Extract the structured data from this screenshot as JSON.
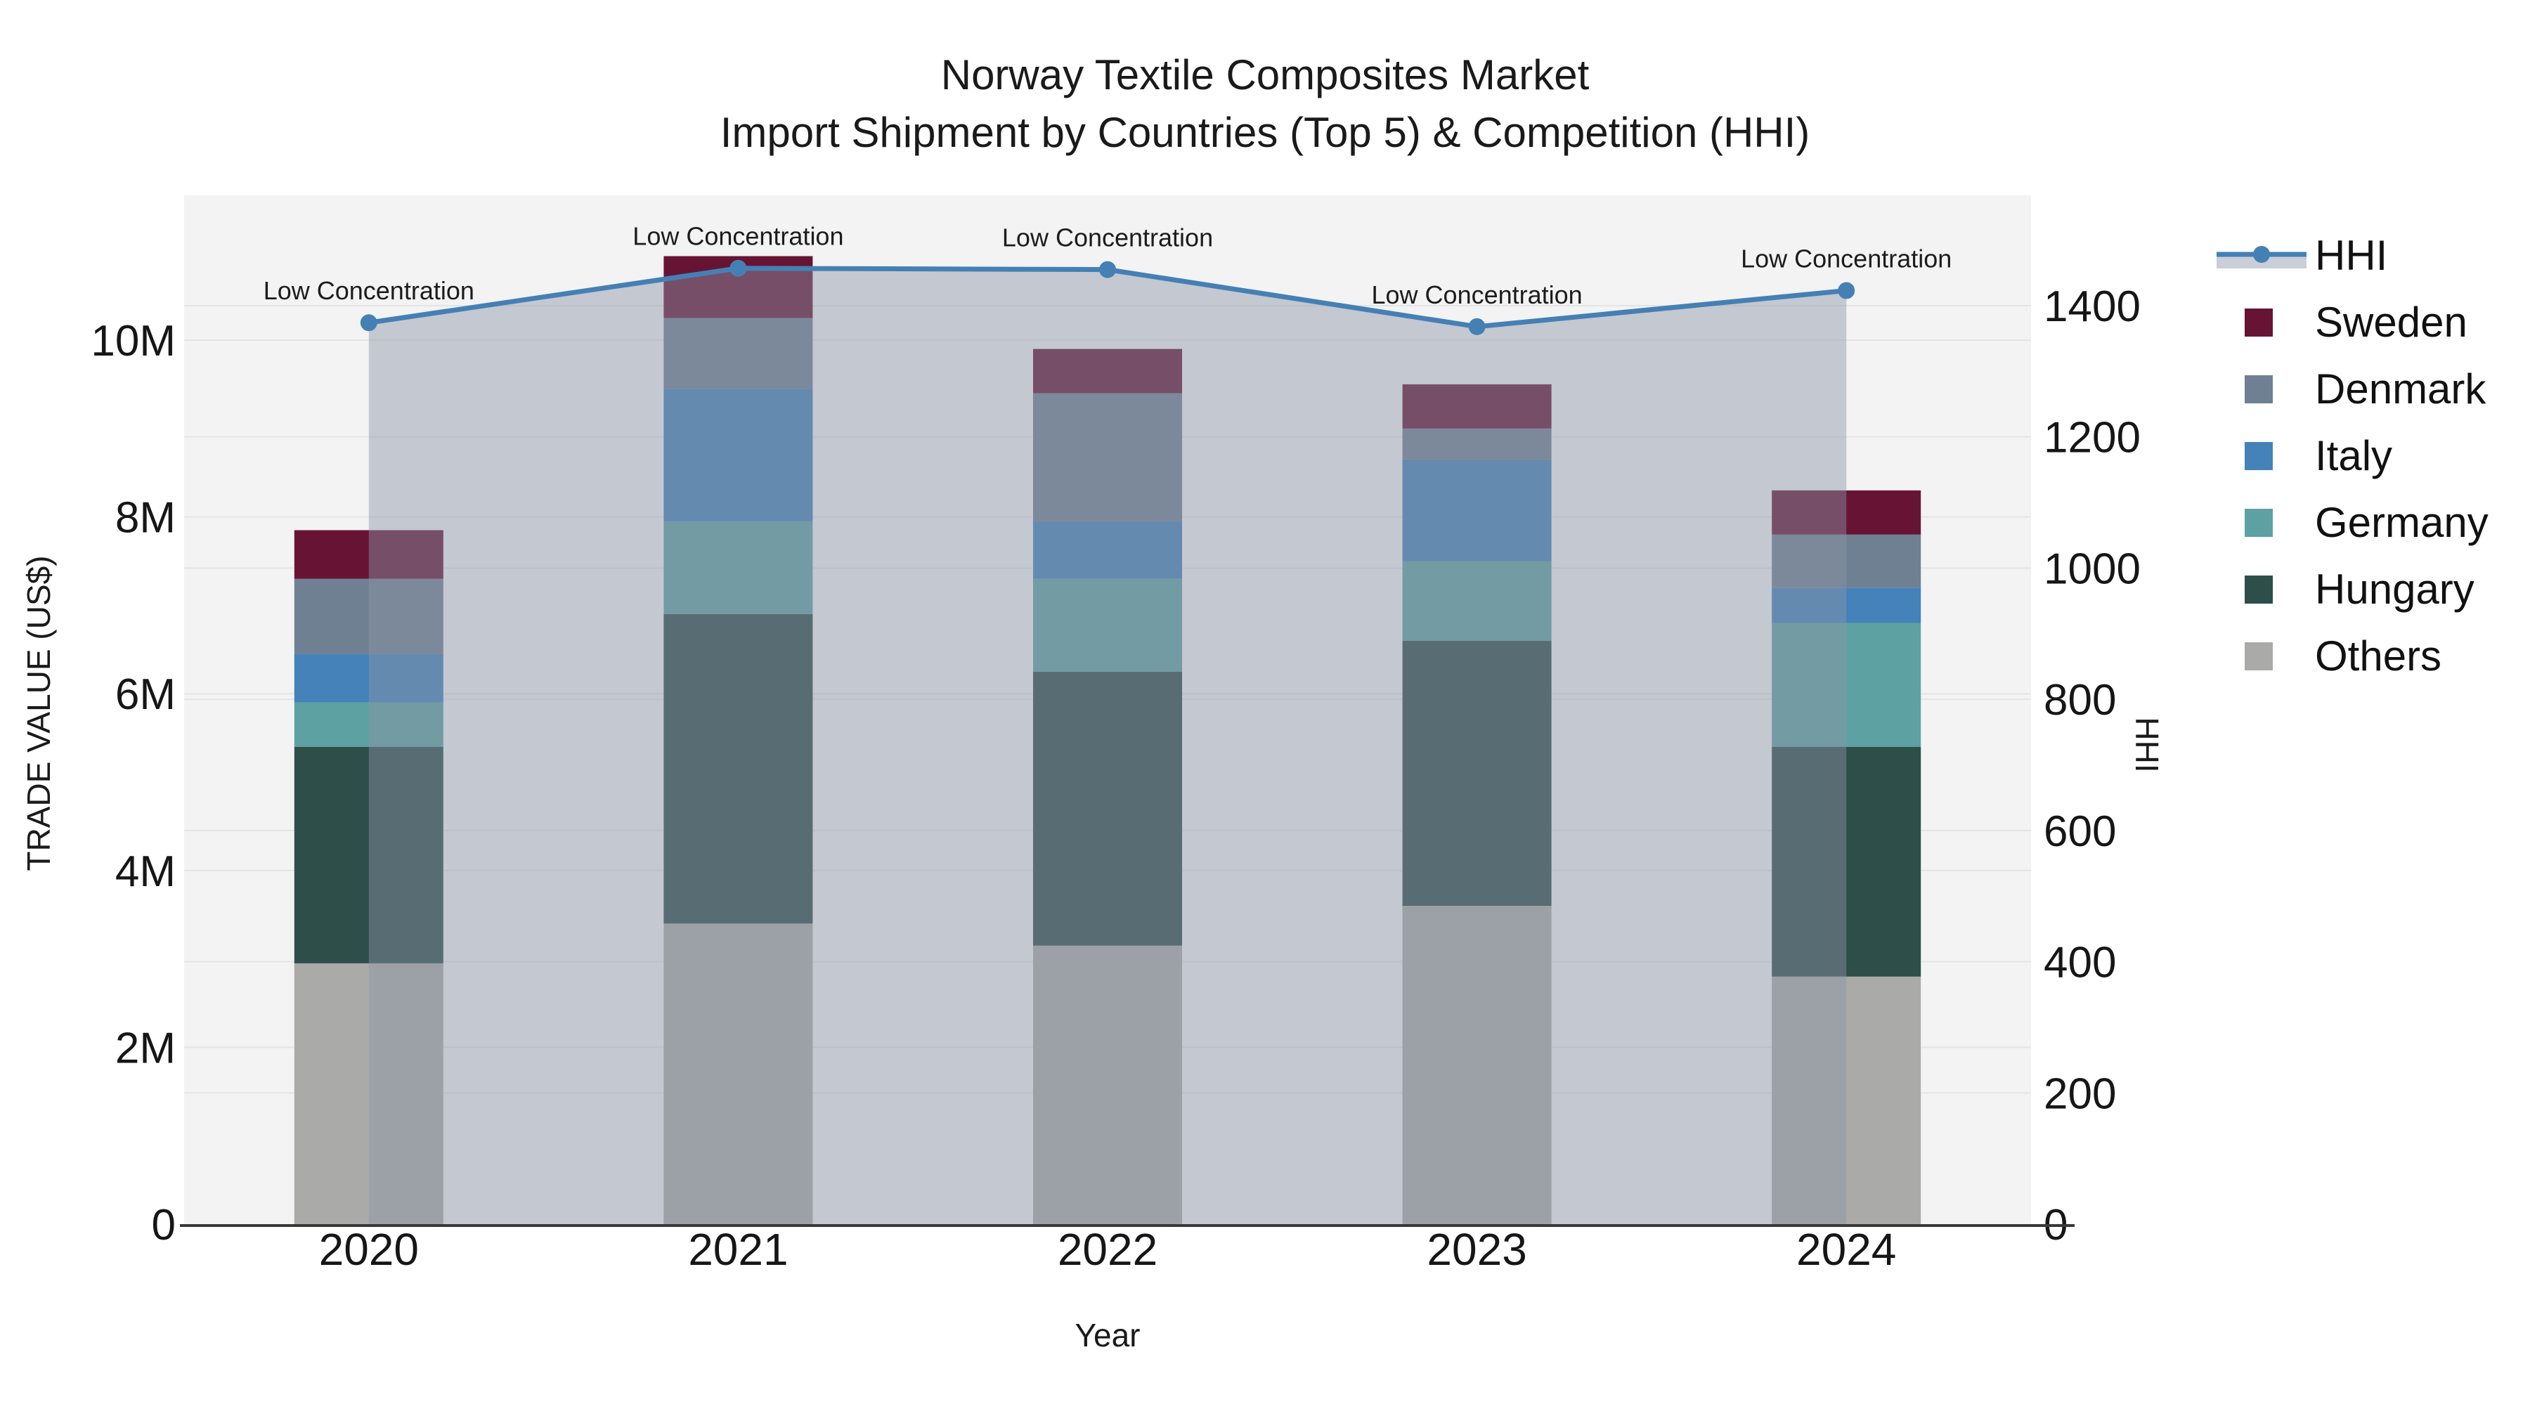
{
  "title": {
    "line1": "Norway Textile Composites Market",
    "line2": "Import Shipment by Countries (Top 5) & Competition (HHI)"
  },
  "axes": {
    "left_title": "TRADE VALUE (US$)",
    "right_title": "HHI",
    "x_title": "Year"
  },
  "colors": {
    "hhi_line": "#4580b4",
    "hhi_area_fill": "rgba(139,148,167,0.45)",
    "hhi_legend_band": "#c9ced8",
    "plot_background": "#f2f3f2",
    "gridline": "#e3e4e4",
    "axis_spine": "#383838",
    "text": "#161616"
  },
  "legend": {
    "items": [
      {
        "label": "HHI",
        "type": "line",
        "color": "#4580b4"
      },
      {
        "label": "Sweden",
        "type": "box",
        "color": "#671434"
      },
      {
        "label": "Denmark",
        "type": "box",
        "color": "#6f8093"
      },
      {
        "label": "Italy",
        "type": "box",
        "color": "#4482b9"
      },
      {
        "label": "Germany",
        "type": "box",
        "color": "#5da1a2"
      },
      {
        "label": "Hungary",
        "type": "box",
        "color": "#2e4e49"
      },
      {
        "label": "Others",
        "type": "box",
        "color": "#aaaaa8"
      }
    ]
  },
  "chart_data": {
    "type": "bar",
    "subtype": "stacked bars (left axis, M US$) with HHI line + shaded area overlay (right axis)",
    "title": "Norway Textile Composites Market — Import Shipment by Countries (Top 5) & Competition (HHI)",
    "x": [
      "2020",
      "2021",
      "2022",
      "2023",
      "2024"
    ],
    "bar_unit": "M US$",
    "series": [
      {
        "name": "Others",
        "color": "#aaaaa8",
        "values": [
          2.95,
          3.4,
          3.15,
          3.6,
          2.8
        ]
      },
      {
        "name": "Hungary",
        "color": "#2e4e49",
        "values": [
          2.45,
          3.5,
          3.1,
          3.0,
          2.6
        ]
      },
      {
        "name": "Germany",
        "color": "#5da1a2",
        "values": [
          0.5,
          1.05,
          1.05,
          0.9,
          1.4
        ]
      },
      {
        "name": "Italy",
        "color": "#4482b9",
        "values": [
          0.55,
          1.5,
          0.65,
          1.15,
          0.4
        ]
      },
      {
        "name": "Denmark",
        "color": "#6f8093",
        "values": [
          0.85,
          0.8,
          1.45,
          0.35,
          0.6
        ]
      },
      {
        "name": "Sweden",
        "color": "#671434",
        "values": [
          0.55,
          0.7,
          0.5,
          0.5,
          0.5
        ]
      }
    ],
    "bar_totals_M": [
      7.85,
      10.95,
      9.9,
      9.5,
      8.3
    ],
    "line_series": {
      "name": "HHI",
      "axis": "right",
      "color": "#4580b4",
      "area_fill": "rgba(139,148,167,0.45)",
      "values": [
        1374,
        1457,
        1455,
        1368,
        1423
      ]
    },
    "annotations": [
      "Low Concentration",
      "Low Concentration",
      "Low Concentration",
      "Low Concentration",
      "Low Concentration"
    ],
    "left_axis": {
      "title": "TRADE VALUE (US$)",
      "tick_labels": [
        "0",
        "2M",
        "4M",
        "6M",
        "8M",
        "10M"
      ],
      "tick_values_M": [
        0,
        2,
        4,
        6,
        8,
        10
      ],
      "grid_values_M": [
        2,
        4,
        6,
        8,
        10
      ],
      "range_M": [
        0,
        11.63
      ]
    },
    "right_axis": {
      "title": "HHI",
      "tick_labels": [
        "0",
        "200",
        "400",
        "600",
        "800",
        "1000",
        "1200",
        "1400"
      ],
      "tick_values": [
        0,
        200,
        400,
        600,
        800,
        1000,
        1200,
        1400
      ],
      "grid_values": [
        200,
        400,
        600,
        800,
        1000,
        1200,
        1400
      ],
      "range": [
        0,
        1568
      ]
    },
    "x_axis": {
      "title": "Year"
    },
    "legend_position": "right",
    "grid": true
  }
}
